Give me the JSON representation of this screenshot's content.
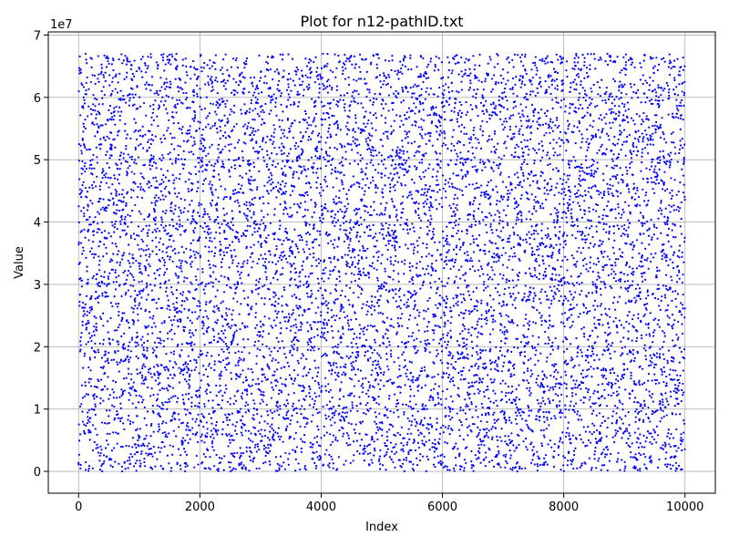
{
  "chart_data": {
    "type": "scatter",
    "title": "Plot for n12-pathID.txt",
    "xlabel": "Index",
    "ylabel": "Value",
    "y_offset_label": "1e7",
    "xlim": [
      -500,
      10500
    ],
    "ylim": [
      -3500000,
      70500000
    ],
    "x_ticks": [
      0,
      2000,
      4000,
      6000,
      8000,
      10000
    ],
    "x_tick_labels": [
      "0",
      "2000",
      "4000",
      "6000",
      "8000",
      "10000"
    ],
    "y_ticks": [
      0,
      10000000,
      20000000,
      30000000,
      40000000,
      50000000,
      60000000,
      70000000
    ],
    "y_tick_labels": [
      "0",
      "1",
      "2",
      "3",
      "4",
      "5",
      "6",
      "7"
    ],
    "grid": true,
    "marker_color": "#0000ff",
    "series": [
      {
        "point_count": 10000,
        "x_min": 0,
        "x_max": 9999,
        "y_min": 0,
        "y_max": 67000000,
        "distribution": "uniform"
      }
    ]
  }
}
